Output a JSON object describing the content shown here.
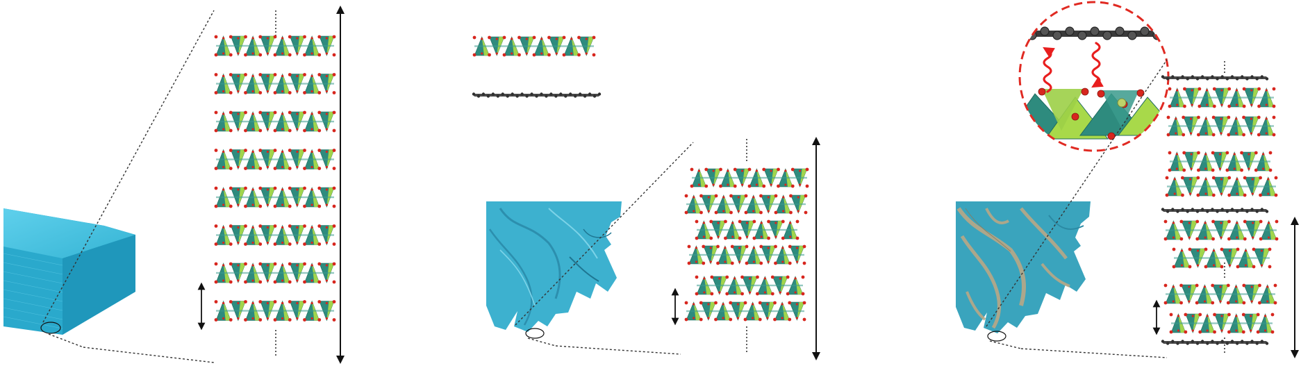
{
  "figure": {
    "panels": [
      {
        "id": "bulk-crystal",
        "layer_count": 8,
        "has_graphene": false,
        "particle": "block"
      },
      {
        "id": "exfoliated-sheets",
        "layer_count": 6,
        "has_graphene": true,
        "particle": "crumpled"
      },
      {
        "id": "graphene-hybrid",
        "layer_count": 8,
        "has_graphene": true,
        "particle": "crumpled-coated",
        "inset": "interface-zoom"
      }
    ],
    "colors": {
      "octahedron_dark": "#2e8b7e",
      "octahedron_light": "#a8d94a",
      "oxygen": "#d7261e",
      "graphene": "#4a4a4a",
      "particle": "#3bb8d6",
      "particle_coating": "#b9a785",
      "inset_ring": "#e02a22",
      "wave": "#e81e1e",
      "arrow": "#111111"
    }
  }
}
